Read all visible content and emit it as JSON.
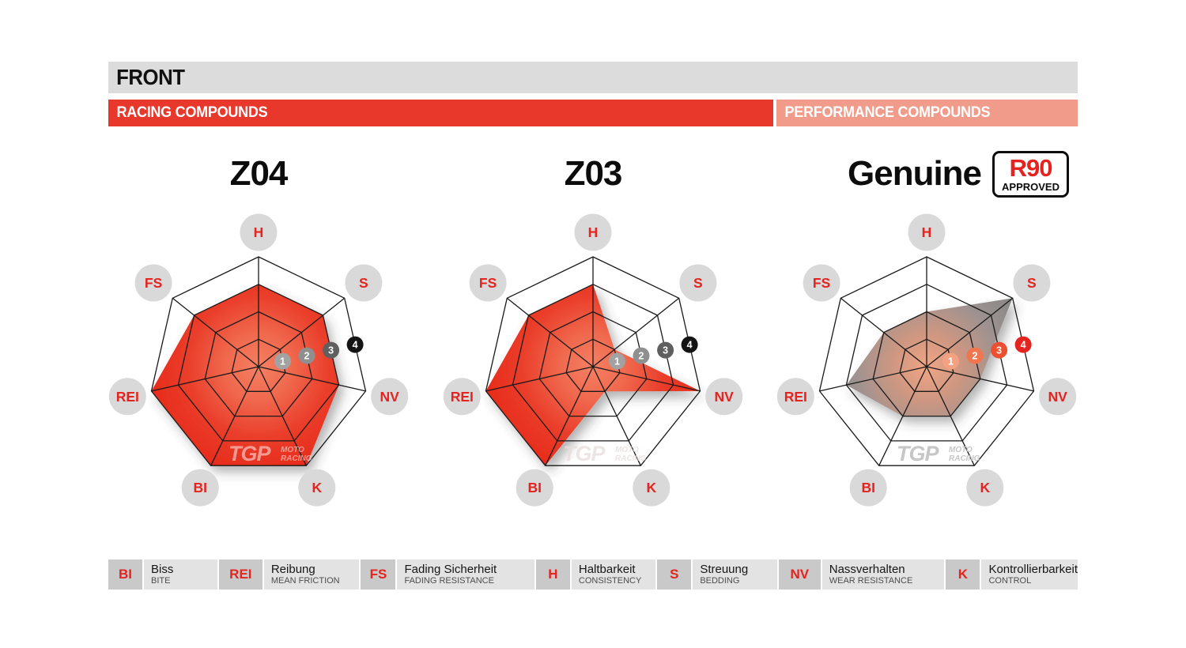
{
  "header": {
    "title": "FRONT",
    "racing_label": "RACING COMPOUNDS",
    "performance_label": "PERFORMANCE COMPOUNDS"
  },
  "badge": {
    "line1": "R90",
    "line2": "APPROVED"
  },
  "watermark": {
    "brand": "TGP",
    "sub1": "MOTO",
    "sub2": "RACING"
  },
  "colors": {
    "brand_red": "#e5231f",
    "racing_bar": "#e8382c",
    "performance_bar": "#f19c8b",
    "header_bar": "#dcdcdc",
    "label_circle": "#d9d9d9",
    "grid_line": "#1a1a1a",
    "legend_abbr_box": "#c9c9c9",
    "legend_text_box": "#e3e3e3"
  },
  "chart_data": [
    {
      "type": "radar",
      "title": "Z04",
      "group": "RACING COMPOUNDS",
      "axes": [
        "H",
        "S",
        "NV",
        "K",
        "BI",
        "REI",
        "FS"
      ],
      "values": [
        3,
        3,
        3,
        4,
        4,
        4,
        3
      ],
      "scale_max": 4,
      "rings": 4,
      "scale_marker_labels": [
        "1",
        "2",
        "3",
        "4"
      ],
      "scale_marker_colors": [
        "#a2a2a2",
        "#8f8f8f",
        "#5f5f5f",
        "#141414"
      ],
      "fill_stops": [
        "#f57f63",
        "#f0694e",
        "#ea3d2a",
        "#e72a1a"
      ],
      "watermark_color": "rgba(255,255,255,0.5)"
    },
    {
      "type": "radar",
      "title": "Z03",
      "group": "RACING COMPOUNDS",
      "axes": [
        "H",
        "S",
        "NV",
        "K",
        "BI",
        "REI",
        "FS"
      ],
      "values": [
        3,
        1,
        4,
        1,
        4,
        4,
        3
      ],
      "scale_max": 4,
      "rings": 4,
      "scale_marker_labels": [
        "1",
        "2",
        "3",
        "4"
      ],
      "scale_marker_colors": [
        "#a2a2a2",
        "#8f8f8f",
        "#5f5f5f",
        "#141414"
      ],
      "fill_stops": [
        "#f57f63",
        "#f0694e",
        "#ea3d2a",
        "#e72a1a"
      ],
      "watermark_color": "rgba(230,220,218,0.75)"
    },
    {
      "type": "radar",
      "title": "Genuine",
      "group": "PERFORMANCE COMPOUNDS",
      "badge": "R90 APPROVED",
      "axes": [
        "H",
        "S",
        "NV",
        "K",
        "BI",
        "REI",
        "FS"
      ],
      "values": [
        2,
        4,
        2,
        2,
        2,
        3,
        2
      ],
      "scale_max": 4,
      "rings": 4,
      "scale_marker_labels": [
        "1",
        "2",
        "3",
        "4"
      ],
      "scale_marker_colors": [
        "#f2a181",
        "#f0764f",
        "#ec5030",
        "#e5231f"
      ],
      "fill_stops": [
        "#f0a585",
        "#cf9781",
        "#9e9290",
        "#878787"
      ],
      "watermark_color": "#c6c6c6"
    }
  ],
  "legend": [
    {
      "abbr": "BI",
      "de": "Biss",
      "en": "BITE"
    },
    {
      "abbr": "REI",
      "de": "Reibung",
      "en": "MEAN FRICTION"
    },
    {
      "abbr": "FS",
      "de": "Fading Sicherheit",
      "en": "FADING RESISTANCE"
    },
    {
      "abbr": "H",
      "de": "Haltbarkeit",
      "en": "CONSISTENCY"
    },
    {
      "abbr": "S",
      "de": "Streuung",
      "en": "BEDDING"
    },
    {
      "abbr": "NV",
      "de": "Nassverhalten",
      "en": "WEAR RESISTANCE"
    },
    {
      "abbr": "K",
      "de": "Kontrollierbarkeit",
      "en": "CONTROL"
    }
  ]
}
